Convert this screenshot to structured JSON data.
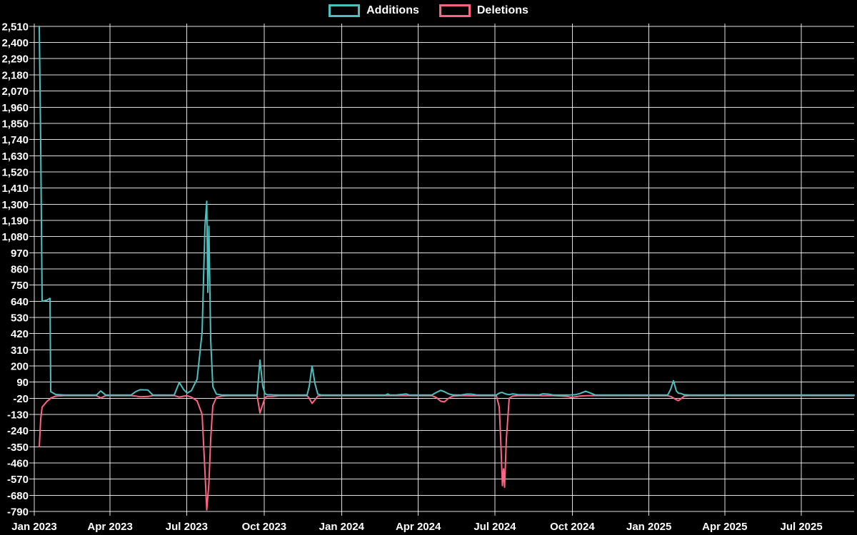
{
  "chart_data": {
    "type": "line",
    "background": "#000000",
    "grid_color": "#ffffff",
    "text_color": "#ffffff",
    "legend_position": "top",
    "grid": true,
    "legend": [
      {
        "label": "Additions",
        "color": "#4bc0c0"
      },
      {
        "label": "Deletions",
        "color": "#ff6384"
      }
    ],
    "x_axis": {
      "unit": "days_since_2023-01-01",
      "ticks": [
        {
          "label": "Jan 2023",
          "t": 0
        },
        {
          "label": "Apr 2023",
          "t": 90
        },
        {
          "label": "Jul 2023",
          "t": 181
        },
        {
          "label": "Oct 2023",
          "t": 273
        },
        {
          "label": "Jan 2024",
          "t": 365
        },
        {
          "label": "Apr 2024",
          "t": 456
        },
        {
          "label": "Jul 2024",
          "t": 547
        },
        {
          "label": "Oct 2024",
          "t": 639
        },
        {
          "label": "Jan 2025",
          "t": 730
        },
        {
          "label": "Apr 2025",
          "t": 820
        },
        {
          "label": "Jul 2025",
          "t": 911
        }
      ],
      "t_end": 974
    },
    "y_axis": {
      "min": -790,
      "max": 2510,
      "step": 110,
      "ticks": [
        {
          "label": "2,510",
          "v": 2510
        },
        {
          "label": "2,400",
          "v": 2400
        },
        {
          "label": "2,290",
          "v": 2290
        },
        {
          "label": "2,180",
          "v": 2180
        },
        {
          "label": "2,070",
          "v": 2070
        },
        {
          "label": "1,960",
          "v": 1960
        },
        {
          "label": "1,850",
          "v": 1850
        },
        {
          "label": "1,740",
          "v": 1740
        },
        {
          "label": "1,630",
          "v": 1630
        },
        {
          "label": "1,520",
          "v": 1520
        },
        {
          "label": "1,410",
          "v": 1410
        },
        {
          "label": "1,300",
          "v": 1300
        },
        {
          "label": "1,190",
          "v": 1190
        },
        {
          "label": "1,080",
          "v": 1080
        },
        {
          "label": "970",
          "v": 970
        },
        {
          "label": "860",
          "v": 860
        },
        {
          "label": "750",
          "v": 750
        },
        {
          "label": "640",
          "v": 640
        },
        {
          "label": "530",
          "v": 530
        },
        {
          "label": "420",
          "v": 420
        },
        {
          "label": "310",
          "v": 310
        },
        {
          "label": "200",
          "v": 200
        },
        {
          "label": "90",
          "v": 90
        },
        {
          "label": "-20",
          "v": -20
        },
        {
          "label": "-130",
          "v": -130
        },
        {
          "label": "-240",
          "v": -240
        },
        {
          "label": "-350",
          "v": -350
        },
        {
          "label": "-460",
          "v": -460
        },
        {
          "label": "-570",
          "v": -570
        },
        {
          "label": "-680",
          "v": -680
        },
        {
          "label": "-790",
          "v": -790
        }
      ]
    },
    "series": [
      {
        "name": "Additions",
        "color": "#4bc0c0",
        "col": 1
      },
      {
        "name": "Deletions",
        "color": "#ff6384",
        "col": 2
      }
    ],
    "points": [
      [
        5.9,
        2510,
        -350
      ],
      [
        7.6,
        1700,
        -160
      ],
      [
        9.3,
        640,
        -80
      ],
      [
        15.3,
        648,
        -40
      ],
      [
        18.7,
        660,
        -25
      ],
      [
        19.5,
        25,
        -18
      ],
      [
        25.4,
        6,
        -6
      ],
      [
        35.6,
        2,
        -2
      ],
      [
        73.8,
        2,
        -2
      ],
      [
        78.9,
        30,
        -18
      ],
      [
        84.8,
        2,
        -2
      ],
      [
        115.0,
        2,
        -2
      ],
      [
        120.4,
        25,
        -5
      ],
      [
        125.5,
        38,
        -10
      ],
      [
        134.9,
        36,
        -8
      ],
      [
        140.8,
        2,
        -2
      ],
      [
        166.2,
        3,
        -2
      ],
      [
        172.2,
        88,
        -12
      ],
      [
        177.3,
        40,
        -6
      ],
      [
        181.5,
        15,
        -3
      ],
      [
        186.6,
        32,
        -12
      ],
      [
        193.4,
        110,
        -38
      ],
      [
        199.3,
        430,
        -130
      ],
      [
        202.7,
        1150,
        -520
      ],
      [
        204.8,
        1320,
        -780
      ],
      [
        206.1,
        700,
        -690
      ],
      [
        207.4,
        1150,
        -600
      ],
      [
        209.5,
        380,
        -300
      ],
      [
        212.0,
        60,
        -70
      ],
      [
        216.3,
        8,
        -14
      ],
      [
        222.2,
        3,
        -6
      ],
      [
        229.0,
        2,
        -3
      ],
      [
        264.6,
        2,
        -2
      ],
      [
        268.0,
        240,
        -120
      ],
      [
        271.4,
        60,
        -60
      ],
      [
        274.0,
        10,
        -15
      ],
      [
        276.5,
        5,
        -8
      ],
      [
        284.1,
        3,
        -8
      ],
      [
        290.1,
        2,
        -3
      ],
      [
        324.0,
        2,
        -2
      ],
      [
        326.5,
        60,
        -20
      ],
      [
        329.9,
        200,
        -55
      ],
      [
        333.3,
        80,
        -30
      ],
      [
        336.7,
        8,
        -5
      ],
      [
        341.0,
        2,
        -2
      ],
      [
        417.3,
        2,
        -2
      ],
      [
        419.8,
        9,
        -2
      ],
      [
        422.4,
        2,
        -2
      ],
      [
        430.0,
        2,
        -2
      ],
      [
        441.9,
        9,
        -2
      ],
      [
        445.3,
        2,
        -2
      ],
      [
        472.4,
        3,
        -3
      ],
      [
        477.5,
        20,
        -15
      ],
      [
        482.6,
        34,
        -40
      ],
      [
        486.9,
        25,
        -45
      ],
      [
        492.0,
        10,
        -20
      ],
      [
        497.0,
        3,
        -5
      ],
      [
        506.4,
        2,
        -2
      ],
      [
        513.1,
        8,
        -2
      ],
      [
        519.1,
        8,
        -3
      ],
      [
        525.9,
        2,
        -2
      ],
      [
        548.8,
        3,
        -3
      ],
      [
        552.2,
        15,
        -80
      ],
      [
        553.9,
        18,
        -300
      ],
      [
        556.0,
        20,
        -615
      ],
      [
        557.3,
        15,
        -500
      ],
      [
        558.5,
        12,
        -625
      ],
      [
        560.6,
        8,
        -300
      ],
      [
        564.0,
        5,
        -20
      ],
      [
        568.3,
        10,
        -5
      ],
      [
        574.2,
        5,
        -2
      ],
      [
        599.7,
        3,
        -2
      ],
      [
        603.9,
        10,
        -3
      ],
      [
        610.7,
        8,
        -2
      ],
      [
        616.6,
        2,
        -2
      ],
      [
        633.6,
        2,
        -8
      ],
      [
        637.8,
        3,
        -14
      ],
      [
        642.9,
        5,
        -10
      ],
      [
        648.0,
        12,
        -5
      ],
      [
        654.8,
        28,
        -3
      ],
      [
        660.7,
        15,
        -2
      ],
      [
        665.8,
        3,
        -2
      ],
      [
        705.7,
        2,
        -2
      ],
      [
        752.3,
        3,
        -3
      ],
      [
        755.7,
        40,
        -8
      ],
      [
        759.1,
        100,
        -18
      ],
      [
        762.5,
        30,
        -30
      ],
      [
        765.1,
        14,
        -36
      ],
      [
        767.6,
        13,
        -25
      ],
      [
        771.8,
        4,
        -6
      ],
      [
        777.8,
        2,
        -2
      ],
      [
        973.7,
        2,
        -2
      ]
    ]
  }
}
